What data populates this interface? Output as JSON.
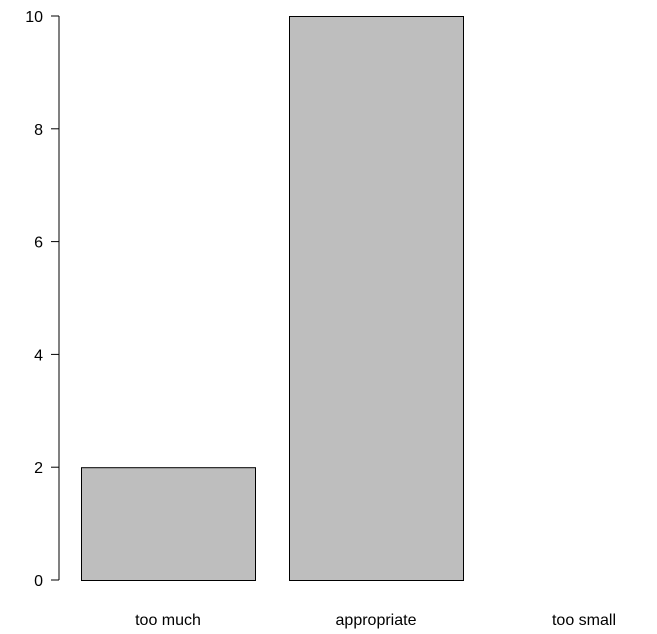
{
  "chart_data": {
    "type": "bar",
    "categories": [
      "too much",
      "appropriate",
      "too small"
    ],
    "values": [
      2,
      10,
      0
    ],
    "title": "",
    "xlabel": "",
    "ylabel": "",
    "ylim": [
      0,
      10
    ],
    "yticks": [
      "0",
      "2",
      "4",
      "6",
      "8",
      "10"
    ],
    "bar_fill": "#bebebe",
    "bar_stroke": "#000000",
    "grid": false
  }
}
